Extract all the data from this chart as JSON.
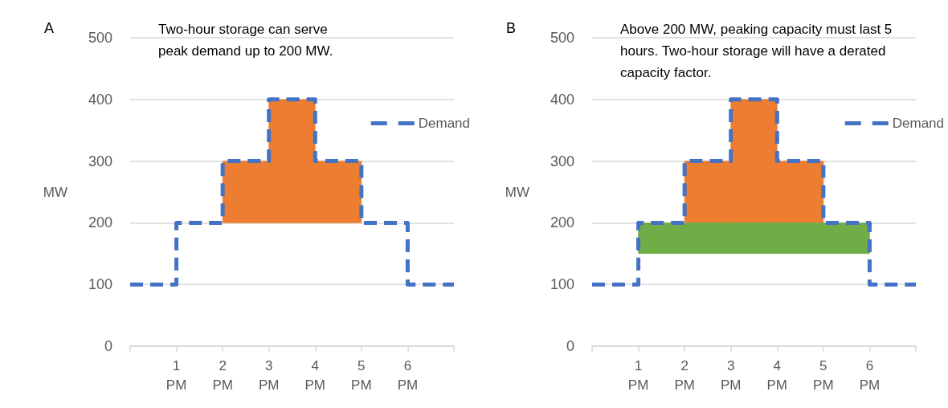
{
  "chart_data": [
    {
      "type": "step",
      "title": "Two-hour storage can serve peak demand up to 200 MW.",
      "annotations": [
        "A"
      ],
      "ylabel": "MW",
      "ylim": [
        0,
        500
      ],
      "yticks": [
        0,
        100,
        200,
        300,
        400,
        500
      ],
      "xlim": [
        0,
        7
      ],
      "xticks": [
        {
          "value": 0,
          "label": null
        },
        {
          "value": 1,
          "label": "1\nPM"
        },
        {
          "value": 2,
          "label": "2\nPM"
        },
        {
          "value": 3,
          "label": "3\nPM"
        },
        {
          "value": 4,
          "label": "4\nPM"
        },
        {
          "value": 5,
          "label": "5\nPM"
        },
        {
          "value": 6,
          "label": "6\nPM"
        },
        {
          "value": 7,
          "label": null
        }
      ],
      "grid": "y",
      "legend": "top right",
      "line_style": "dashed",
      "marker": "none",
      "series": [
        {
          "type": "histogram",
          "color": "#ed7d31",
          "bins": [
            2,
            3,
            4,
            5
          ],
          "base": [
            200,
            200,
            200
          ],
          "values": [
            100,
            200,
            100
          ]
        },
        {
          "name": "Demand",
          "color": "#4472c4",
          "x": [
            0,
            1,
            2,
            3,
            4,
            5,
            6,
            7
          ],
          "values": [
            100,
            200,
            300,
            400,
            300,
            200,
            100,
            100
          ]
        }
      ]
    },
    {
      "type": "step",
      "title": "Above 200 MW, peaking capacity must last 5 hours. Two-hour storage will have a derated capacity factor.",
      "annotations": [
        "B"
      ],
      "ylabel": "MW",
      "ylim": [
        0,
        500
      ],
      "yticks": [
        0,
        100,
        200,
        300,
        400,
        500
      ],
      "xlim": [
        0,
        7
      ],
      "xticks": [
        {
          "value": 0,
          "label": null
        },
        {
          "value": 1,
          "label": "1\nPM"
        },
        {
          "value": 2,
          "label": "2\nPM"
        },
        {
          "value": 3,
          "label": "3\nPM"
        },
        {
          "value": 4,
          "label": "4\nPM"
        },
        {
          "value": 5,
          "label": "5\nPM"
        },
        {
          "value": 6,
          "label": "6\nPM"
        },
        {
          "value": 7,
          "label": null
        }
      ],
      "grid": "y",
      "legend": "top right",
      "line_style": "dashed",
      "marker": "none",
      "series": [
        {
          "type": "histogram",
          "color": "#ed7d31",
          "bins": [
            2,
            3,
            4,
            5
          ],
          "base": [
            200,
            200,
            200
          ],
          "values": [
            100,
            200,
            100
          ]
        },
        {
          "type": "histogram",
          "color": "#70ad47",
          "bins": [
            1,
            6
          ],
          "base": [
            150
          ],
          "values": [
            50
          ]
        },
        {
          "name": "Demand",
          "color": "#4472c4",
          "x": [
            0,
            1,
            2,
            3,
            4,
            5,
            6,
            7
          ],
          "values": [
            100,
            200,
            300,
            400,
            300,
            200,
            100,
            100
          ]
        }
      ]
    }
  ]
}
